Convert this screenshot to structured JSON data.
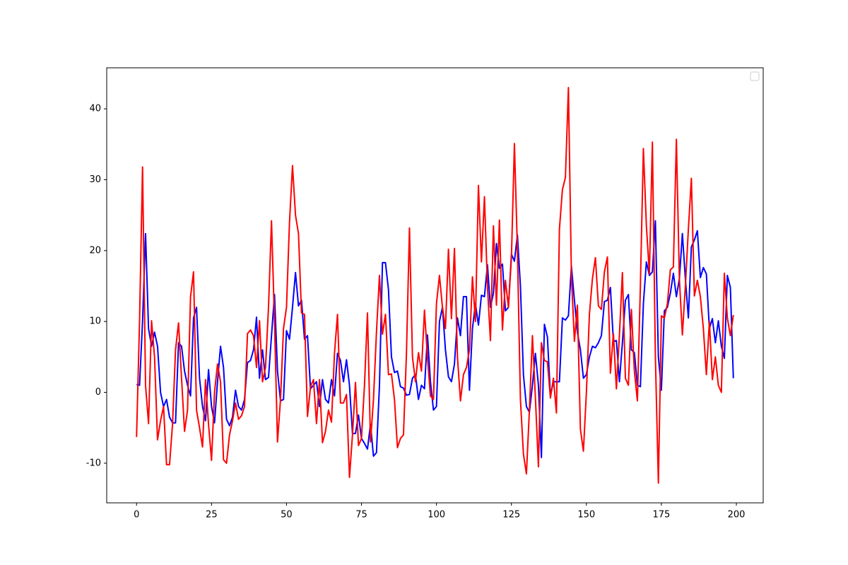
{
  "chart_data": {
    "type": "line",
    "x": [
      0,
      1,
      2,
      3,
      4,
      5,
      6,
      7,
      8,
      9,
      10,
      11,
      12,
      13,
      14,
      15,
      16,
      17,
      18,
      19,
      20,
      21,
      22,
      23,
      24,
      25,
      26,
      27,
      28,
      29,
      30,
      31,
      32,
      33,
      34,
      35,
      36,
      37,
      38,
      39,
      40,
      41,
      42,
      43,
      44,
      45,
      46,
      47,
      48,
      49,
      50,
      51,
      52,
      53,
      54,
      55,
      56,
      57,
      58,
      59,
      60,
      61,
      62,
      63,
      64,
      65,
      66,
      67,
      68,
      69,
      70,
      71,
      72,
      73,
      74,
      75,
      76,
      77,
      78,
      79,
      80,
      81,
      82,
      83,
      84,
      85,
      86,
      87,
      88,
      89,
      90,
      91,
      92,
      93,
      94,
      95,
      96,
      97,
      98,
      99,
      100,
      101,
      102,
      103,
      104,
      105,
      106,
      107,
      108,
      109,
      110,
      111,
      112,
      113,
      114,
      115,
      116,
      117,
      118,
      119,
      120,
      121,
      122,
      123,
      124,
      125,
      126,
      127,
      128,
      129,
      130,
      131,
      132,
      133,
      134,
      135,
      136,
      137,
      138,
      139,
      140,
      141,
      142,
      143,
      144,
      145,
      146,
      147,
      148,
      149,
      150,
      151,
      152,
      153,
      154,
      155,
      156,
      157,
      158,
      159,
      160,
      161,
      162,
      163,
      164,
      165,
      166,
      167,
      168,
      169,
      170,
      171,
      172,
      173,
      174,
      175,
      176,
      177,
      178,
      179,
      180,
      181,
      182,
      183,
      184,
      185,
      186,
      187,
      188,
      189,
      190,
      191,
      192,
      193,
      194,
      195,
      196,
      197,
      198,
      199
    ],
    "series": [
      {
        "color": "#0000ff",
        "values": [
          1.1,
          1,
          10,
          22.4,
          9,
          6.5,
          8.5,
          6.5,
          0,
          -2,
          -1,
          -3.5,
          -4.3,
          -4.3,
          7,
          6.5,
          3,
          1,
          -0.5,
          10.5,
          12,
          2,
          -2,
          -4,
          3.2,
          -2,
          -4.3,
          1.5,
          6.5,
          3.5,
          -3.8,
          -4.7,
          -3.5,
          0.3,
          -2,
          -2.5,
          -1,
          4.2,
          4.5,
          6,
          10.6,
          2,
          6,
          1.8,
          2.1,
          8,
          13.8,
          3,
          -1.2,
          -1,
          8.7,
          7.5,
          12,
          16.9,
          12.2,
          13,
          7.5,
          8,
          0.5,
          1,
          1.5,
          -2,
          1.8,
          -1,
          -1.5,
          1.8,
          -0.5,
          5.5,
          4.5,
          1.5,
          4.6,
          1,
          -5.8,
          -5.8,
          -3.2,
          -6.5,
          -7.2,
          -8,
          -4.5,
          -9,
          -8.5,
          1,
          18.3,
          18.3,
          14.5,
          5,
          2.8,
          3,
          0.8,
          0.6,
          -0.4,
          -0.3,
          2,
          2.5,
          -1,
          1,
          0.5,
          8.1,
          1.5,
          -2.5,
          -2,
          10,
          12,
          6,
          2.2,
          1.5,
          4,
          10.5,
          8,
          13.5,
          13.5,
          0.3,
          9,
          12.5,
          9.5,
          13.7,
          13.5,
          18,
          12,
          14,
          21,
          17.5,
          18.1,
          11.5,
          12,
          19.5,
          18.5,
          22.2,
          15,
          2.5,
          -2,
          -2.8,
          1,
          5.5,
          1,
          -9.2,
          9.6,
          7.8,
          -0.5,
          1.5,
          1.5,
          1.5,
          10.5,
          10.2,
          10.8,
          17.8,
          13,
          8.5,
          6,
          2,
          2.5,
          5,
          6.5,
          6.3,
          7,
          8,
          12.8,
          13,
          14.8,
          7.2,
          7.3,
          1.5,
          7,
          13,
          13.8,
          6,
          5.6,
          1,
          0.8,
          12.5,
          18.4,
          16.5,
          17,
          24.2,
          5,
          0.3,
          11.5,
          12,
          14,
          16.8,
          13.5,
          16,
          22.4,
          16,
          10.5,
          20.5,
          21.5,
          22.8,
          16.2,
          17.6,
          16.7,
          9,
          10.4,
          7,
          10.1,
          6.5,
          4.8,
          16.5,
          14.8,
          2
        ]
      },
      {
        "color": "#ff0000",
        "values": [
          -6.3,
          10,
          31.8,
          1,
          -4.4,
          10.1,
          5,
          -6.7,
          -4,
          -2,
          -10.2,
          -10.2,
          -4.5,
          6,
          9.8,
          2,
          -5.5,
          -2.5,
          13.5,
          17,
          -2.5,
          -5,
          -7.7,
          1.8,
          -4.5,
          -9.6,
          0,
          4,
          1.5,
          -9.5,
          -10,
          -6,
          -4,
          -1.5,
          -3.8,
          -3.3,
          -2,
          8.3,
          8.8,
          8,
          3.5,
          10.1,
          1.5,
          3.5,
          12,
          24.2,
          10,
          -7,
          -1,
          9,
          12,
          24,
          32,
          25,
          22.4,
          11.2,
          11,
          -3.4,
          0.8,
          1.8,
          -4.4,
          1.8,
          -7.1,
          -5.5,
          -2.5,
          -4.2,
          5.5,
          11,
          -1.5,
          -1.5,
          -0.3,
          -12,
          -6,
          1.4,
          -7.5,
          -6.5,
          1,
          11.2,
          -7,
          -1,
          8.5,
          16.5,
          8.2,
          11,
          2.5,
          2.6,
          -1,
          -7.8,
          -6.5,
          -6,
          5.5,
          23.2,
          5,
          1.5,
          5.6,
          3,
          11.6,
          5,
          -0.5,
          -1,
          12.5,
          16.5,
          12,
          9,
          20.2,
          10.4,
          20.3,
          5,
          -1.2,
          2.5,
          3.5,
          6,
          16.3,
          10,
          29.2,
          18.4,
          27.6,
          15,
          7.3,
          23.5,
          12.3,
          24.3,
          8.8,
          15.8,
          12,
          19,
          35.1,
          20,
          -1,
          -8.7,
          -11.5,
          -2.5,
          8,
          -0.8,
          -10.5,
          7,
          4.5,
          4.3,
          -0.8,
          2,
          -2.9,
          23,
          28.6,
          30.3,
          43,
          16.5,
          7.2,
          12.3,
          -5.2,
          -8.3,
          0,
          11,
          16,
          19,
          12.2,
          11.7,
          17,
          19.1,
          2.7,
          8.3,
          0.5,
          8,
          16.9,
          2,
          1,
          11.7,
          3,
          -1.2,
          15,
          34.4,
          23.5,
          16.7,
          35.3,
          5,
          -12.8,
          10.8,
          10.5,
          12.5,
          17.3,
          17.7,
          35.7,
          16,
          8.1,
          15,
          23,
          30.2,
          13.6,
          15.8,
          13.5,
          9,
          2.5,
          10,
          1.8,
          5,
          1,
          0,
          16.8,
          10.5,
          8,
          10.9
        ]
      }
    ],
    "xlim": [
      -9.95,
      208.95
    ],
    "ylim": [
      -15.59,
      45.79
    ],
    "xticks": [
      0,
      25,
      50,
      75,
      100,
      125,
      150,
      175,
      200
    ],
    "yticks": [
      -10,
      0,
      10,
      20,
      30,
      40
    ]
  }
}
